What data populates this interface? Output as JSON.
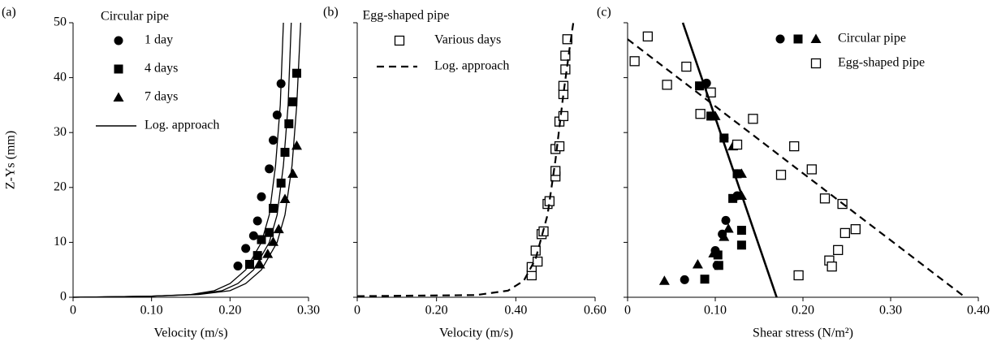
{
  "chart_data": [
    {
      "type": "scatter",
      "panel_label": "(a)",
      "xlabel": "Velocity (m/s)",
      "ylabel": "Z-Ys (mm)",
      "legend_title": "Circular pipe",
      "color": "#000000",
      "xlim": [
        0,
        0.3
      ],
      "xticks": [
        0,
        {
          "value": 0.1,
          "label": "0.10"
        },
        {
          "value": 0.2,
          "label": "0.20"
        },
        {
          "value": 0.3,
          "label": "0.30"
        }
      ],
      "ylim": [
        0,
        50
      ],
      "yticks": [
        0,
        10,
        20,
        30,
        40,
        50
      ],
      "ytick_labels": true,
      "series": [
        {
          "name": "1 day",
          "marker": "circle",
          "x": [
            0.21,
            0.22,
            0.23,
            0.235,
            0.24,
            0.25,
            0.255,
            0.26,
            0.265
          ],
          "y": [
            5.7,
            8.9,
            11.2,
            13.9,
            18.3,
            23.4,
            28.6,
            33.2,
            38.9
          ]
        },
        {
          "name": "4 days",
          "marker": "square",
          "x": [
            0.225,
            0.235,
            0.24,
            0.25,
            0.255,
            0.265,
            0.27,
            0.275,
            0.28,
            0.285
          ],
          "y": [
            6,
            7.6,
            10.5,
            11.8,
            16.2,
            20.8,
            26.4,
            31.6,
            35.6,
            40.8
          ]
        },
        {
          "name": "7 days",
          "marker": "triangle",
          "x": [
            0.238,
            0.248,
            0.255,
            0.262,
            0.27,
            0.28,
            0.285
          ],
          "y": [
            6,
            7.9,
            10.1,
            12.4,
            17.9,
            22.5,
            27.6
          ]
        },
        {
          "name": "Log. approach",
          "marker": "line",
          "dash": false,
          "curves": [
            {
              "x": [
                0,
                0.1,
                0.15,
                0.18,
                0.2,
                0.22,
                0.24,
                0.25,
                0.258,
                0.264,
                0.268
              ],
              "y": [
                0,
                0.2,
                0.5,
                1.2,
                2.5,
                5,
                10,
                15,
                24,
                35,
                50
              ]
            },
            {
              "x": [
                0,
                0.1,
                0.155,
                0.19,
                0.21,
                0.23,
                0.25,
                0.26,
                0.268,
                0.274,
                0.278
              ],
              "y": [
                0,
                0.2,
                0.5,
                1.2,
                2.5,
                5,
                10,
                15,
                24,
                35,
                50
              ]
            },
            {
              "x": [
                0,
                0.1,
                0.16,
                0.2,
                0.22,
                0.24,
                0.26,
                0.27,
                0.279,
                0.285,
                0.29
              ],
              "y": [
                0,
                0.2,
                0.5,
                1.2,
                2.5,
                5,
                10,
                15,
                24,
                35,
                50
              ]
            }
          ]
        }
      ]
    },
    {
      "type": "scatter",
      "panel_label": "(b)",
      "xlabel": "Velocity (m/s)",
      "legend_title": "Egg-shaped pipe",
      "color": "#000000",
      "xlim": [
        0,
        0.6
      ],
      "xticks": [
        0,
        {
          "value": 0.2,
          "label": "0.20"
        },
        {
          "value": 0.4,
          "label": "0.40"
        },
        {
          "value": 0.6,
          "label": "0.60"
        }
      ],
      "ylim": [
        0,
        50
      ],
      "yticks": [
        0,
        10,
        20,
        30,
        40,
        50
      ],
      "ytick_labels": false,
      "series": [
        {
          "name": "Various days",
          "marker": "open-square",
          "x": [
            0.44,
            0.44,
            0.455,
            0.45,
            0.465,
            0.47,
            0.48,
            0.485,
            0.5,
            0.5,
            0.5,
            0.51,
            0.51,
            0.52,
            0.52,
            0.52,
            0.525,
            0.525,
            0.53
          ],
          "y": [
            4,
            5.5,
            6.5,
            8.5,
            11.5,
            12,
            17,
            17.5,
            22,
            23,
            27,
            27.5,
            32,
            33,
            37,
            38.5,
            41.5,
            44,
            47
          ]
        },
        {
          "name": "Log. approach",
          "marker": "line",
          "dash": true,
          "curves": [
            {
              "x": [
                0,
                0.3,
                0.38,
                0.42,
                0.45,
                0.48,
                0.5,
                0.52,
                0.535,
                0.545
              ],
              "y": [
                0.2,
                0.4,
                1.2,
                3,
                7,
                15,
                25,
                37,
                45,
                50
              ]
            }
          ]
        }
      ]
    },
    {
      "type": "scatter",
      "panel_label": "(c)",
      "xlabel": "Shear stress (N/m²)",
      "color": "#000000",
      "xlim": [
        0,
        0.4
      ],
      "xticks": [
        0,
        {
          "value": 0.1,
          "label": "0.10"
        },
        {
          "value": 0.2,
          "label": "0.20"
        },
        {
          "value": 0.3,
          "label": "0.30"
        },
        {
          "value": 0.4,
          "label": "0.40"
        }
      ],
      "ylim": [
        0,
        50
      ],
      "yticks": [
        0,
        10,
        20,
        30,
        40,
        50
      ],
      "ytick_labels": false,
      "series": [
        {
          "name": "Circular pipe",
          "groups": [
            {
              "marker": "circle",
              "x": [
                0.065,
                0.102,
                0.1,
                0.108,
                0.112,
                0.125,
                0.125,
                0.11,
                0.095,
                0.09
              ],
              "y": [
                3.2,
                5.8,
                8.5,
                11.5,
                14,
                18.5,
                22.5,
                29,
                33,
                39
              ]
            },
            {
              "marker": "square",
              "x": [
                0.088,
                0.104,
                0.103,
                0.13,
                0.13,
                0.12,
                0.125,
                0.11,
                0.095,
                0.082
              ],
              "y": [
                3.3,
                5.8,
                7.7,
                9.5,
                12.2,
                18,
                22.5,
                29,
                33,
                38.5
              ]
            },
            {
              "marker": "triangle",
              "x": [
                0.042,
                0.08,
                0.098,
                0.11,
                0.115,
                0.13,
                0.13,
                0.12,
                0.1
              ],
              "y": [
                3,
                6,
                8,
                11,
                12.5,
                18.5,
                22.5,
                27.5,
                33
              ]
            }
          ]
        },
        {
          "name": "Egg-shaped pipe",
          "marker": "open-square",
          "x": [
            0.023,
            0.008,
            0.045,
            0.067,
            0.083,
            0.095,
            0.143,
            0.125,
            0.19,
            0.175,
            0.21,
            0.225,
            0.245,
            0.248,
            0.26,
            0.24,
            0.23,
            0.233,
            0.195
          ],
          "y": [
            47.5,
            43,
            38.7,
            42,
            33.4,
            37.3,
            32.5,
            27.8,
            27.5,
            22.3,
            23.3,
            18,
            17,
            11.7,
            12.4,
            8.6,
            6.7,
            5.6,
            4
          ]
        },
        {
          "marker": "line",
          "dash": false,
          "curves": [
            {
              "x": [
                0.063,
                0.17
              ],
              "y": [
                50,
                0
              ]
            }
          ]
        },
        {
          "marker": "line",
          "dash": true,
          "curves": [
            {
              "x": [
                0,
                0.385
              ],
              "y": [
                47,
                0
              ]
            }
          ]
        }
      ]
    }
  ]
}
